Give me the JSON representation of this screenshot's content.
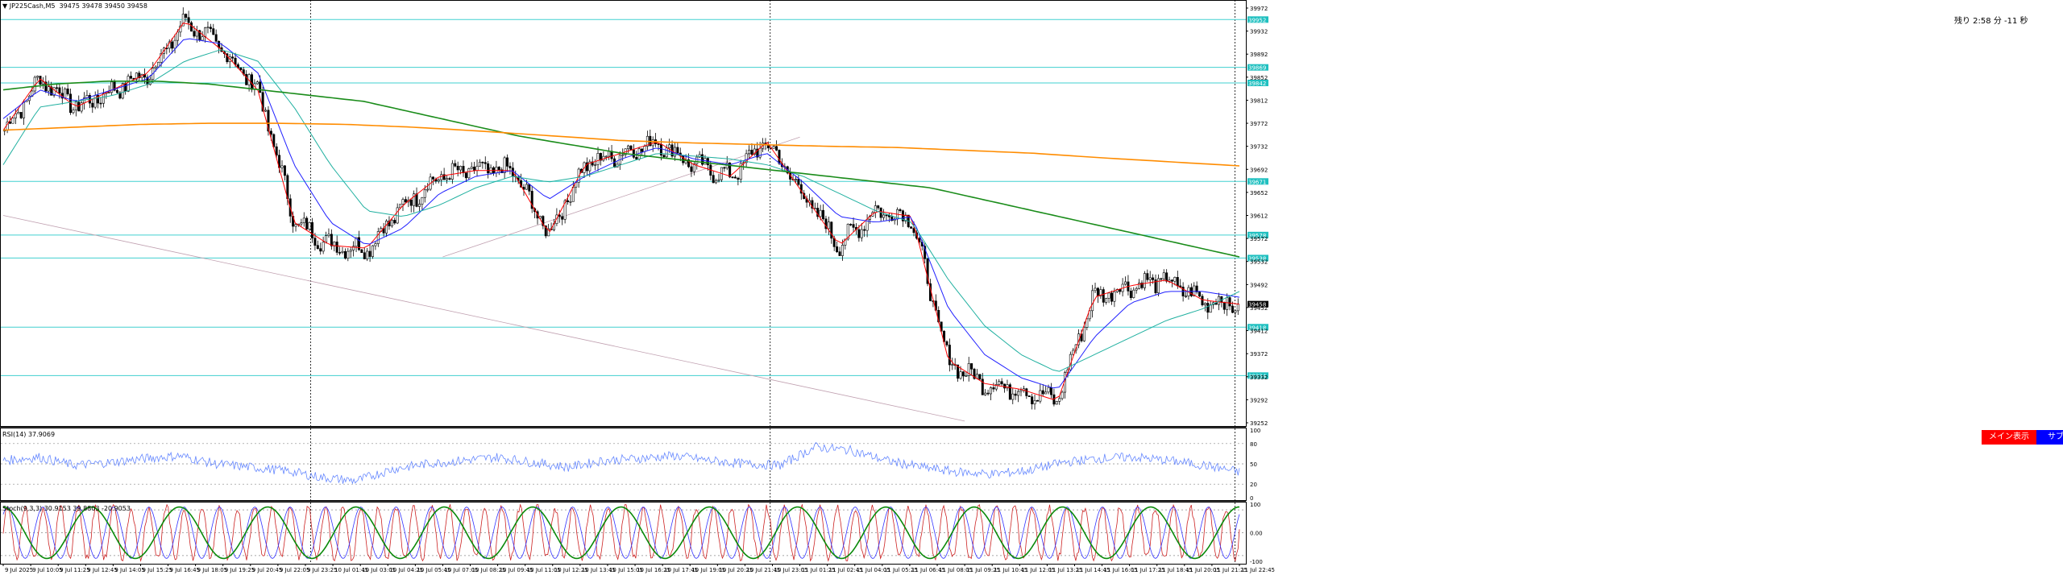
{
  "window": {
    "symbol": "JP225Cash",
    "timeframe": "M5",
    "ohlc_text": "39475 39478 39450 39458",
    "remaining_time": "残り 2:58 分 -11 秒"
  },
  "buttons": {
    "main_display": "メイン表示",
    "sub_display": "サブ表示"
  },
  "colors": {
    "background": "#ffffff",
    "candle_up": "#000000",
    "candle_down": "#000000",
    "ma_short": "#ff0000",
    "ma_mid": "#2020ff",
    "ma_long_cyan": "#20b0a0",
    "ma_200_green": "#1a8c1a",
    "ma_trend_orange": "#ff8c00",
    "hline_cyan": "#40d0d0",
    "trendline": "#c0a0b0",
    "rsi_line": "#6688ff",
    "stoch_k": "#cc2222",
    "stoch_d": "#3333ff",
    "stoch_slow": "#0a8a0a",
    "price_tag_bg": "#20c0c0",
    "current_price_bg": "#000000"
  },
  "chart_data": [
    {
      "type": "candlestick",
      "panel": "main",
      "title": "JP225Cash,M5",
      "ohlc_header": [
        39475,
        39478,
        39450,
        39458
      ],
      "x_tick_labels": [
        "9 Jul 2025",
        "9 Jul 10:05",
        "9 Jul 11:25",
        "9 Jul 12:45",
        "9 Jul 14:05",
        "9 Jul 15:25",
        "9 Jul 16:45",
        "9 Jul 18:05",
        "9 Jul 19:25",
        "9 Jul 20:45",
        "9 Jul 22:05",
        "9 Jul 23:25",
        "10 Jul 01:45",
        "10 Jul 03:05",
        "10 Jul 04:25",
        "10 Jul 05:45",
        "10 Jul 07:05",
        "10 Jul 08:25",
        "10 Jul 09:45",
        "10 Jul 11:05",
        "10 Jul 12:25",
        "10 Jul 13:45",
        "10 Jul 15:05",
        "10 Jul 16:25",
        "10 Jul 17:45",
        "10 Jul 19:05",
        "10 Jul 20:25",
        "10 Jul 21:45",
        "10 Jul 23:05",
        "11 Jul 01:25",
        "11 Jul 02:45",
        "11 Jul 04:05",
        "11 Jul 05:25",
        "11 Jul 06:45",
        "11 Jul 08:05",
        "11 Jul 09:25",
        "11 Jul 10:45",
        "11 Jul 12:05",
        "11 Jul 13:25",
        "11 Jul 14:45",
        "11 Jul 16:05",
        "11 Jul 17:25",
        "11 Jul 18:45",
        "11 Jul 20:05",
        "11 Jul 21:25",
        "11 Jul 22:45"
      ],
      "y_tick_labels": [
        "39972",
        "39932",
        "39892",
        "39852",
        "39812",
        "39772",
        "39732",
        "39692",
        "39652",
        "39612",
        "39572",
        "39532",
        "39492",
        "39452",
        "39412",
        "39372",
        "39332",
        "39292",
        "39252"
      ],
      "ylim": [
        39252,
        39972
      ],
      "current_price": 39458,
      "close_anchors": [
        39760,
        39850,
        39800,
        39830,
        39860,
        39950,
        39900,
        39830,
        39600,
        39560,
        39555,
        39630,
        39680,
        39690,
        39690,
        39580,
        39700,
        39720,
        39740,
        39700,
        39680,
        39740,
        39650,
        39560,
        39620,
        39610,
        39360,
        39320,
        39310,
        39290,
        39470,
        39490,
        39500,
        39465,
        39458
      ],
      "horizontal_levels": [
        {
          "value": 39952,
          "label": "39952"
        },
        {
          "value": 39869,
          "label": "39869"
        },
        {
          "value": 39842,
          "label": "39842"
        },
        {
          "value": 39671,
          "label": "39671"
        },
        {
          "value": 39578,
          "label": "39578"
        },
        {
          "value": 39538,
          "label": "39538"
        },
        {
          "value": 39418,
          "label": "39418"
        },
        {
          "value": 39334,
          "label": "39334"
        }
      ],
      "moving_averages": [
        {
          "name": "MA short",
          "color": "#ff0000",
          "anchors": [
            39760,
            39850,
            39800,
            39830,
            39860,
            39950,
            39900,
            39830,
            39600,
            39560,
            39555,
            39630,
            39680,
            39690,
            39690,
            39580,
            39700,
            39720,
            39740,
            39700,
            39680,
            39740,
            39650,
            39560,
            39620,
            39610,
            39360,
            39320,
            39310,
            39290,
            39470,
            39490,
            39500,
            39465,
            39458
          ]
        },
        {
          "name": "MA mid",
          "color": "#2020ff",
          "anchors": [
            39780,
            39830,
            39810,
            39830,
            39850,
            39920,
            39910,
            39860,
            39700,
            39600,
            39560,
            39590,
            39650,
            39680,
            39690,
            39640,
            39680,
            39710,
            39730,
            39710,
            39700,
            39720,
            39670,
            39610,
            39600,
            39610,
            39450,
            39370,
            39330,
            39310,
            39400,
            39460,
            39480,
            39480,
            39470
          ]
        },
        {
          "name": "MA long",
          "color": "#20b0a0",
          "anchors": [
            39700,
            39800,
            39810,
            39820,
            39840,
            39880,
            39900,
            39880,
            39800,
            39700,
            39620,
            39610,
            39630,
            39660,
            39680,
            39670,
            39680,
            39700,
            39720,
            39715,
            39710,
            39700,
            39680,
            39650,
            39620,
            39600,
            39500,
            39420,
            39370,
            39340,
            39370,
            39400,
            39430,
            39450,
            39480
          ]
        },
        {
          "name": "MA 200",
          "color": "#1a8c1a",
          "anchors": [
            39830,
            39840,
            39845,
            39845,
            39840,
            39830,
            39820,
            39810,
            39790,
            39770,
            39750,
            39735,
            39720,
            39710,
            39700,
            39690,
            39680,
            39670,
            39660,
            39640,
            39620,
            39600,
            39580,
            39560,
            39540
          ]
        },
        {
          "name": "MA trend",
          "color": "#ff8c00",
          "anchors": [
            39760,
            39765,
            39770,
            39772,
            39772,
            39770,
            39765,
            39758,
            39750,
            39742,
            39738,
            39735,
            39732,
            39730,
            39725,
            39720,
            39712,
            39705,
            39698
          ]
        }
      ],
      "trend_lines": [
        {
          "from": [
            "9 Jul 2025",
            39612
          ],
          "to": [
            "11 Jul 09:25",
            39255
          ]
        },
        {
          "from": [
            "10 Jul 07:05",
            39540
          ],
          "to": [
            "11 Jul 01:25",
            39748
          ]
        }
      ]
    },
    {
      "type": "line",
      "panel": "rsi",
      "title": "RSI(14) 37.9069",
      "ylim": [
        0,
        100
      ],
      "y_tick_labels": [
        "100",
        "80",
        "50",
        "20",
        "0"
      ],
      "series": [
        {
          "name": "RSI(14)",
          "anchors": [
            55,
            60,
            48,
            52,
            58,
            62,
            50,
            45,
            40,
            30,
            25,
            42,
            50,
            55,
            60,
            52,
            45,
            55,
            58,
            62,
            55,
            50,
            48,
            75,
            70,
            55,
            45,
            38,
            35,
            40,
            52,
            58,
            60,
            55,
            48,
            38
          ]
        }
      ]
    },
    {
      "type": "line",
      "panel": "stochastic",
      "title": "Stoch(9,3,3) 30.9153 39.8803 -20.9053",
      "ylim": [
        -100,
        100
      ],
      "y_tick_labels": [
        "100",
        "0.00",
        "-100"
      ],
      "series": [
        {
          "name": "%K",
          "oscillation_cycles": 70
        },
        {
          "name": "%D",
          "oscillation_cycles": 35
        },
        {
          "name": "Slow",
          "oscillation_cycles": 14
        }
      ]
    }
  ]
}
